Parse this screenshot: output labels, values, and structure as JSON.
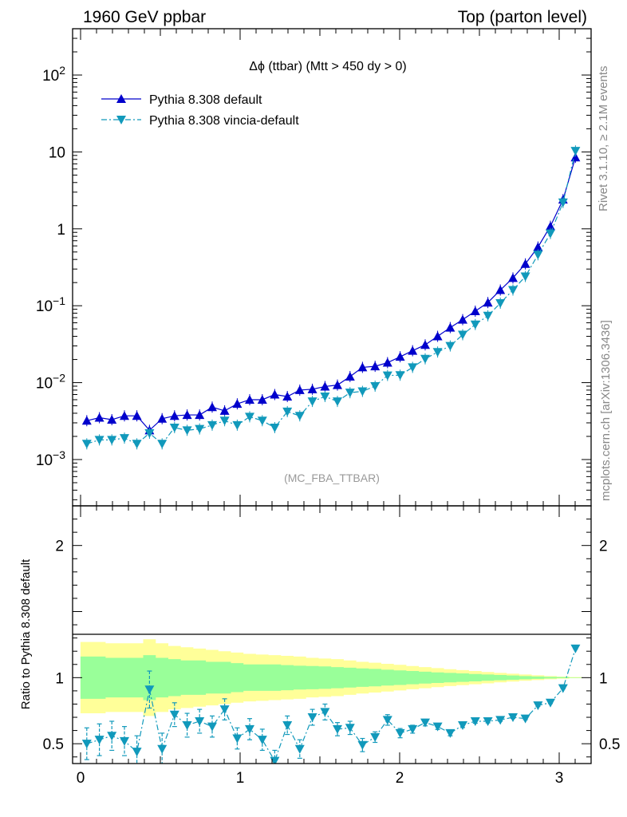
{
  "header": {
    "left": "1960 GeV ppbar",
    "right": "Top (parton level)"
  },
  "side_labels": {
    "rivet": "Rivet 3.1.10, ≥ 2.1M events",
    "mcplots": "mcplots.cern.ch [arXiv:1306.3436]"
  },
  "analysis_label": "(MC_FBA_TTBAR)",
  "plot_title": "Δϕ (ttbar) (Mtt > 450 dy > 0)",
  "colors": {
    "default": "#0000cc",
    "vincia": "#1199bb",
    "band_inner": "#99ff99",
    "band_outer": "#ffff99"
  },
  "chart_data": [
    {
      "type": "line",
      "panel": "main",
      "yscale": "log",
      "xlim": [
        -0.05,
        3.2
      ],
      "ylim": [
        0.00025,
        400
      ],
      "y_tick_labels": [
        "10^-3",
        "10^-2",
        "10^-1",
        "1",
        "10",
        "10^2"
      ],
      "x": [
        0.039,
        0.118,
        0.196,
        0.275,
        0.353,
        0.432,
        0.511,
        0.589,
        0.668,
        0.746,
        0.825,
        0.903,
        0.982,
        1.06,
        1.139,
        1.217,
        1.296,
        1.374,
        1.453,
        1.532,
        1.61,
        1.689,
        1.767,
        1.846,
        1.924,
        2.003,
        2.081,
        2.16,
        2.238,
        2.317,
        2.395,
        2.474,
        2.553,
        2.631,
        2.71,
        2.788,
        2.867,
        2.945,
        3.024,
        3.102
      ],
      "series": [
        {
          "name": "Pythia 8.308 default",
          "marker": "triangle-up",
          "line": "solid",
          "values": [
            0.0032,
            0.0035,
            0.0033,
            0.0037,
            0.0037,
            0.0024,
            0.0034,
            0.0037,
            0.0038,
            0.0038,
            0.0048,
            0.0043,
            0.0053,
            0.006,
            0.006,
            0.007,
            0.0066,
            0.008,
            0.0082,
            0.0089,
            0.0093,
            0.012,
            0.0158,
            0.0163,
            0.0182,
            0.0217,
            0.026,
            0.031,
            0.04,
            0.052,
            0.066,
            0.085,
            0.11,
            0.16,
            0.23,
            0.35,
            0.58,
            1.08,
            2.4,
            8.5
          ]
        },
        {
          "name": "Pythia 8.308 vincia-default",
          "marker": "triangle-down",
          "line": "dashdot",
          "values": [
            0.0016,
            0.0018,
            0.0018,
            0.0019,
            0.0016,
            0.0022,
            0.0016,
            0.0026,
            0.0024,
            0.0025,
            0.0028,
            0.0032,
            0.0028,
            0.0036,
            0.0032,
            0.0026,
            0.0042,
            0.0037,
            0.0057,
            0.0066,
            0.0057,
            0.0074,
            0.0077,
            0.009,
            0.0124,
            0.0125,
            0.0158,
            0.0204,
            0.025,
            0.03,
            0.042,
            0.057,
            0.074,
            0.108,
            0.16,
            0.24,
            0.46,
            0.87,
            2.2,
            10.3
          ]
        }
      ]
    },
    {
      "type": "line",
      "panel": "ratio",
      "ylabel": "Ratio to Pythia 8.308 default",
      "xlim": [
        -0.05,
        3.2
      ],
      "ylim": [
        0.35,
        2.3
      ],
      "x_tick_labels": [
        "0",
        "1",
        "2",
        "3"
      ],
      "y_tick_labels": [
        "0.5",
        "1",
        "2"
      ],
      "x": [
        0.039,
        0.118,
        0.196,
        0.275,
        0.353,
        0.432,
        0.511,
        0.589,
        0.668,
        0.746,
        0.825,
        0.903,
        0.982,
        1.06,
        1.139,
        1.217,
        1.296,
        1.374,
        1.453,
        1.532,
        1.61,
        1.689,
        1.767,
        1.846,
        1.924,
        2.003,
        2.081,
        2.16,
        2.238,
        2.317,
        2.395,
        2.474,
        2.553,
        2.631,
        2.71,
        2.788,
        2.867,
        2.945,
        3.024,
        3.102
      ],
      "band_inner": [
        0.16,
        0.16,
        0.15,
        0.15,
        0.15,
        0.17,
        0.15,
        0.14,
        0.13,
        0.13,
        0.12,
        0.12,
        0.11,
        0.1,
        0.1,
        0.1,
        0.095,
        0.09,
        0.088,
        0.085,
        0.08,
        0.075,
        0.07,
        0.066,
        0.06,
        0.055,
        0.05,
        0.045,
        0.04,
        0.036,
        0.032,
        0.028,
        0.024,
        0.02,
        0.016,
        0.012,
        0.009,
        0.006,
        0.004,
        0.002
      ],
      "band_outer": [
        0.27,
        0.27,
        0.26,
        0.26,
        0.26,
        0.29,
        0.26,
        0.24,
        0.23,
        0.22,
        0.21,
        0.2,
        0.19,
        0.18,
        0.175,
        0.17,
        0.165,
        0.16,
        0.15,
        0.145,
        0.14,
        0.13,
        0.12,
        0.113,
        0.105,
        0.097,
        0.088,
        0.08,
        0.072,
        0.064,
        0.057,
        0.05,
        0.043,
        0.036,
        0.03,
        0.024,
        0.018,
        0.012,
        0.008,
        0.004
      ],
      "series": [
        {
          "name": "Pythia 8.308 vincia-default",
          "marker": "triangle-down",
          "line": "dashdot",
          "values": [
            0.5,
            0.53,
            0.56,
            0.52,
            0.44,
            0.91,
            0.46,
            0.72,
            0.64,
            0.67,
            0.63,
            0.76,
            0.54,
            0.61,
            0.53,
            0.37,
            0.64,
            0.46,
            0.7,
            0.74,
            0.61,
            0.62,
            0.49,
            0.55,
            0.68,
            0.58,
            0.61,
            0.66,
            0.63,
            0.58,
            0.64,
            0.67,
            0.67,
            0.68,
            0.7,
            0.69,
            0.79,
            0.81,
            0.92,
            1.22
          ],
          "errors": [
            0.12,
            0.12,
            0.11,
            0.11,
            0.12,
            0.14,
            0.12,
            0.09,
            0.09,
            0.09,
            0.08,
            0.08,
            0.08,
            0.08,
            0.08,
            0.08,
            0.07,
            0.07,
            0.06,
            0.06,
            0.05,
            0.05,
            0.05,
            0.04,
            0.04,
            0.035,
            0.03,
            0.025,
            0.022,
            0.02,
            0.018,
            0.015,
            0.012,
            0.01,
            0.009,
            0.008,
            0.007,
            0.006,
            0.005,
            0.004
          ]
        }
      ]
    }
  ]
}
